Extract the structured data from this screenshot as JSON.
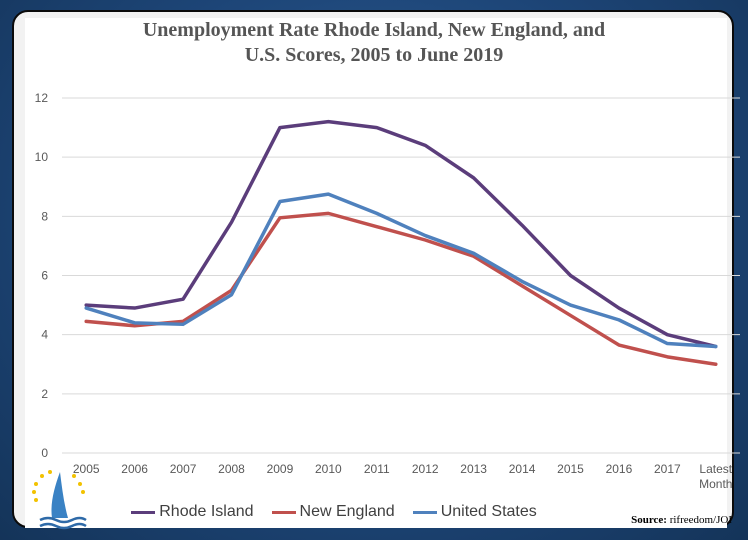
{
  "chart_data": {
    "type": "line",
    "title_line1": "Unemployment Rate Rhode Island, New England, and",
    "title_line2": "U.S. Scores, 2005 to June 2019",
    "categories": [
      "2005",
      "2006",
      "2007",
      "2008",
      "2009",
      "2010",
      "2011",
      "2012",
      "2013",
      "2014",
      "2015",
      "2016",
      "2017",
      "Latest\nMonth"
    ],
    "yticks": [
      "0",
      "2",
      "4",
      "6",
      "8",
      "10",
      "12"
    ],
    "ylim": [
      0,
      12
    ],
    "grid": true,
    "legend_position": "bottom",
    "series": [
      {
        "name": "Rhode Island",
        "color": "#5b3d7b",
        "values": [
          5.0,
          4.9,
          5.2,
          7.8,
          11.0,
          11.2,
          11.0,
          10.4,
          9.3,
          7.7,
          6.0,
          4.9,
          4.0,
          3.6
        ]
      },
      {
        "name": "New England",
        "color": "#c0504d",
        "values": [
          4.45,
          4.3,
          4.45,
          5.5,
          7.95,
          8.1,
          7.65,
          7.2,
          6.65,
          5.65,
          4.65,
          3.65,
          3.25,
          3.0
        ]
      },
      {
        "name": "United States",
        "color": "#4f81bd",
        "values": [
          4.9,
          4.4,
          4.35,
          5.35,
          8.5,
          8.75,
          8.1,
          7.35,
          6.75,
          5.8,
          5.0,
          4.5,
          3.7,
          3.6
        ]
      }
    ]
  },
  "source": {
    "label": "Source:",
    "text": " rifreedom/JOI"
  }
}
